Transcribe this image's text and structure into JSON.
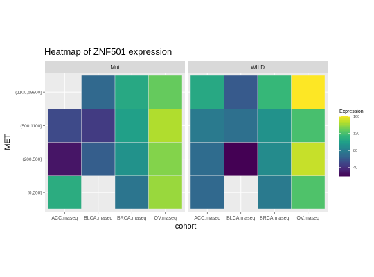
{
  "chart_data": {
    "type": "heatmap",
    "title": "Heatmap of ZNF501 expression",
    "xlabel": "cohort",
    "ylabel": "MET",
    "facets": [
      "Mut",
      "WILD"
    ],
    "categories": [
      "ACC.maseq",
      "BLCA.maseq",
      "BRCA.maseq",
      "OV.maseq"
    ],
    "rows": [
      "(1100,69900]",
      "(500,1100]",
      "(200,500]",
      "[0,200]"
    ],
    "values": {
      "Mut": [
        [
          null,
          68,
          105,
          128
        ],
        [
          52,
          45,
          100,
          145
        ],
        [
          28,
          62,
          92,
          135
        ],
        [
          108,
          null,
          75,
          140
        ]
      ],
      "WILD": [
        [
          105,
          60,
          115,
          162
        ],
        [
          78,
          72,
          92,
          120
        ],
        [
          70,
          20,
          88,
          150
        ],
        [
          68,
          null,
          78,
          122
        ]
      ]
    },
    "legend": {
      "title": "Expression",
      "ticks": [
        40,
        80,
        120,
        160
      ],
      "range": [
        20,
        162
      ],
      "position": "right"
    }
  }
}
